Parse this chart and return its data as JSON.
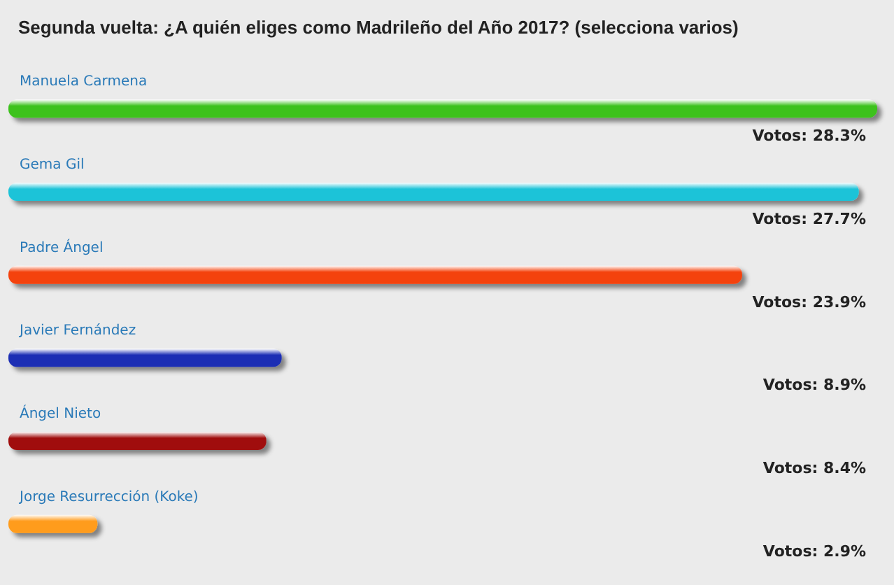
{
  "chart_data": {
    "type": "bar",
    "orientation": "horizontal",
    "title": "Segunda vuelta: ¿A quién eliges como Madrileño del Año 2017? (selecciona varios)",
    "categories": [
      "Manuela Carmena",
      "Gema Gil",
      "Padre Ángel",
      "Javier Fernández",
      "Ángel Nieto",
      "Jorge Resurrección (Koke)"
    ],
    "values": [
      28.3,
      27.7,
      23.9,
      8.9,
      8.4,
      2.9
    ],
    "colors": [
      "#3cc21c",
      "#1ec3d8",
      "#f4420c",
      "#1a2db4",
      "#a00c0c",
      "#ff9c1c"
    ],
    "value_labels": [
      "Votos: 28.3%",
      "Votos: 27.7%",
      "Votos: 23.9%",
      "Votos: 8.9%",
      "Votos: 8.4%",
      "Votos: 2.9%"
    ]
  }
}
